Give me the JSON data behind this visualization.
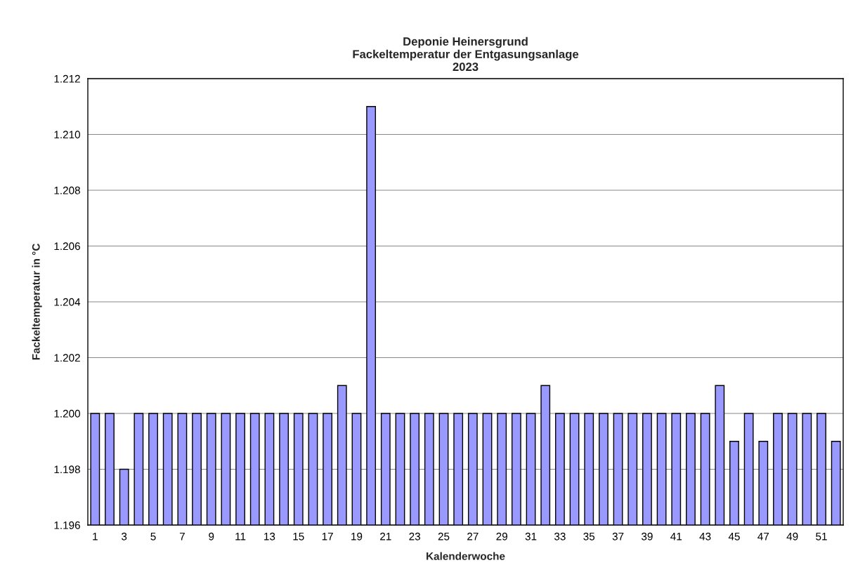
{
  "chart_data": {
    "type": "bar",
    "title": "Deponie Heinersgrund\nFackeltemperatur der Entgasungsanlage\n2023",
    "xlabel": "Kalenderwoche",
    "ylabel": "Fackeltemperatur in °C",
    "categories": [
      "1",
      null,
      "3",
      null,
      "5",
      null,
      "7",
      null,
      "9",
      null,
      "11",
      null,
      "13",
      null,
      "15",
      null,
      "17",
      null,
      "19",
      null,
      "21",
      null,
      "23",
      null,
      "25",
      null,
      "27",
      null,
      "29",
      null,
      "31",
      null,
      "33",
      null,
      "35",
      null,
      "37",
      null,
      "39",
      null,
      "41",
      null,
      "43",
      null,
      "45",
      null,
      "47",
      null,
      "49",
      null,
      "51",
      null
    ],
    "values": [
      1200,
      1200,
      1198,
      1200,
      1200,
      1200,
      1200,
      1200,
      1200,
      1200,
      1200,
      1200,
      1200,
      1200,
      1200,
      1200,
      1200,
      1201,
      1200,
      1211,
      1200,
      1200,
      1200,
      1200,
      1200,
      1200,
      1200,
      1200,
      1200,
      1200,
      1200,
      1201,
      1200,
      1200,
      1200,
      1200,
      1200,
      1200,
      1200,
      1200,
      1200,
      1200,
      1200,
      1201,
      1199,
      1200,
      1199,
      1200,
      1200,
      1200,
      1200,
      1199
    ],
    "color": "#9999ff",
    "ylim": [
      1196,
      1212
    ],
    "yticks": [
      {
        "value": 1196,
        "label": "1.196"
      },
      {
        "value": 1198,
        "label": "1.198"
      },
      {
        "value": 1200,
        "label": "1.200"
      },
      {
        "value": 1202,
        "label": "1.202"
      },
      {
        "value": 1204,
        "label": "1.204"
      },
      {
        "value": 1206,
        "label": "1.206"
      },
      {
        "value": 1208,
        "label": "1.208"
      },
      {
        "value": 1210,
        "label": "1.210"
      },
      {
        "value": 1212,
        "label": "1.212"
      }
    ],
    "grid": "y",
    "legend": false
  }
}
